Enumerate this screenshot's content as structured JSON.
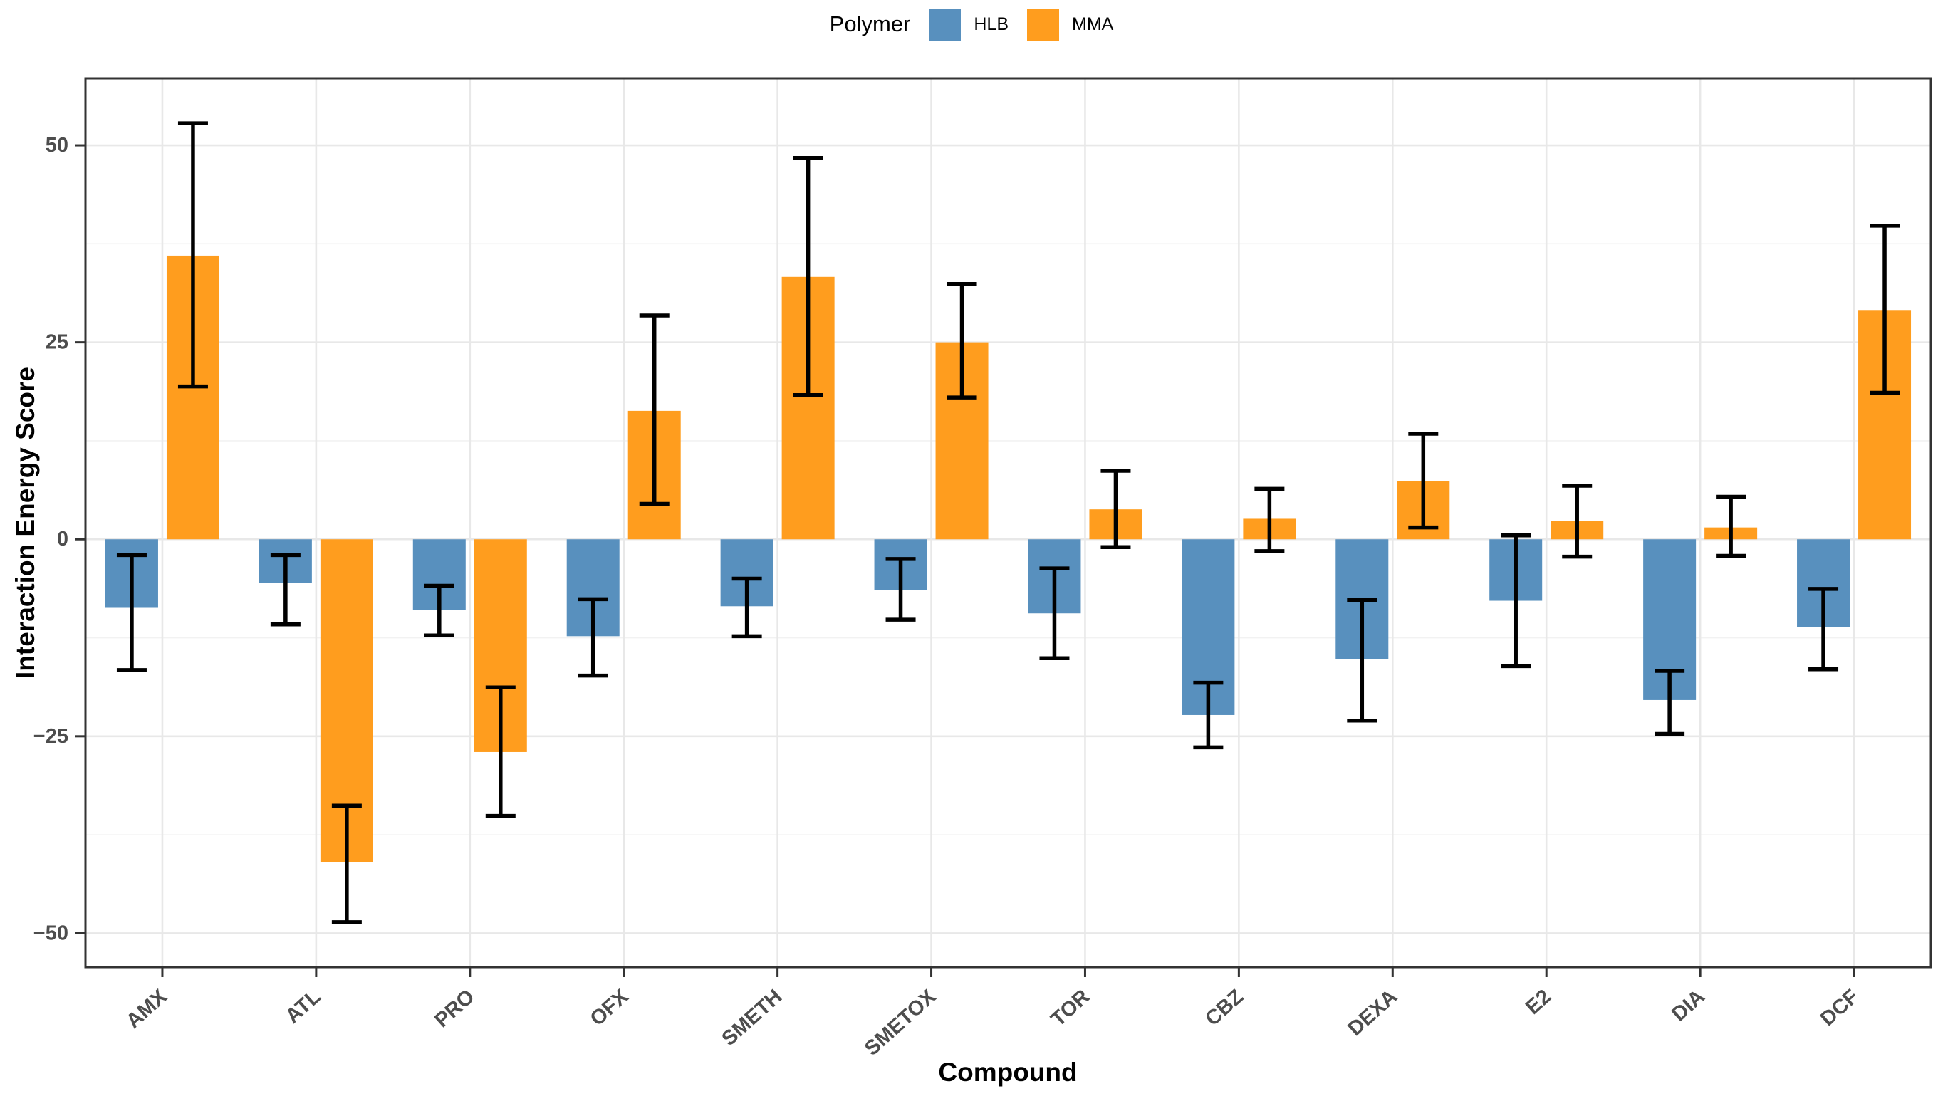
{
  "legend": {
    "title": "Polymer",
    "items": [
      {
        "label": "HLB",
        "color": "#5890BE"
      },
      {
        "label": "MMA",
        "color": "#FF9D1E"
      }
    ]
  },
  "chart_data": {
    "type": "bar",
    "title": "",
    "xlabel": "Compound",
    "ylabel": "Interaction Energy Score",
    "categories": [
      "AMX",
      "ATL",
      "PRO",
      "OFX",
      "SMETH",
      "SMETOX",
      "TOR",
      "CBZ",
      "DEXA",
      "E2",
      "DIA",
      "DCF"
    ],
    "series": [
      {
        "name": "HLB",
        "color": "#5890BE",
        "values": [
          -8.7,
          -5.5,
          -9.0,
          -12.3,
          -8.5,
          -6.4,
          -9.4,
          -22.3,
          -15.2,
          -7.8,
          -20.4,
          -11.1
        ],
        "error_low": [
          -16.6,
          -10.8,
          -12.2,
          -17.3,
          -12.3,
          -10.2,
          -15.1,
          -26.4,
          -23.0,
          -16.1,
          -24.7,
          -16.5
        ],
        "error_high": [
          -2.0,
          -2.0,
          -5.9,
          -7.6,
          -5.0,
          -2.5,
          -3.7,
          -18.2,
          -7.7,
          0.5,
          -16.7,
          -6.3
        ]
      },
      {
        "name": "MMA",
        "color": "#FF9D1E",
        "values": [
          36.0,
          -41.0,
          -27.0,
          16.3,
          33.3,
          25.0,
          3.8,
          2.6,
          7.4,
          2.3,
          1.5,
          29.1
        ],
        "error_low": [
          19.4,
          -48.6,
          -35.1,
          4.5,
          18.3,
          18.0,
          -1.0,
          -1.5,
          1.5,
          -2.2,
          -2.1,
          18.6
        ],
        "error_high": [
          52.8,
          -33.8,
          -18.8,
          28.4,
          48.4,
          32.4,
          8.7,
          6.4,
          13.4,
          6.8,
          5.4,
          39.8
        ]
      }
    ],
    "ylim": [
      -54.3,
      58.5
    ],
    "yticks": [
      50,
      25,
      0,
      -25,
      -50
    ],
    "ytick_labels": [
      "50",
      "25",
      "0",
      "−25",
      "−50"
    ],
    "yticks_minor": [
      37.5,
      12.5,
      -12.5,
      -37.5
    ],
    "grid": "on",
    "legend_position": "top",
    "error_bar_color": "#000000",
    "grid_major_color": "#E8E8E8",
    "grid_minor_color": "#F2F2F2",
    "panel_border_color": "#333333",
    "axis_text_color": "#4d4d4d"
  }
}
